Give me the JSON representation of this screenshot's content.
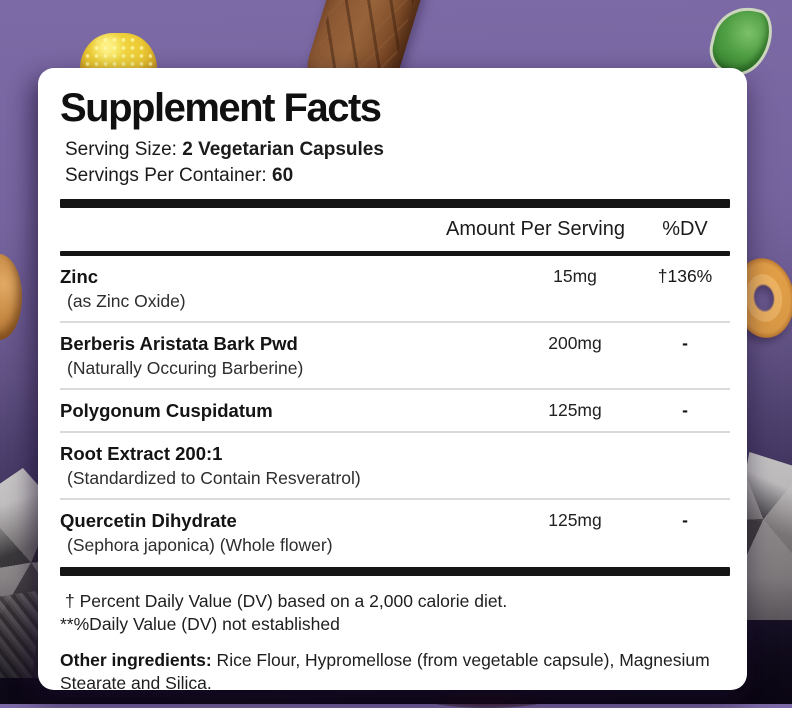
{
  "background": {
    "base_top_color": "#7c6aa6",
    "base_bottom_color": "#171021",
    "decor_items": [
      "yellow-gummy",
      "chocolate-stick",
      "green-gummy",
      "orange-gummy",
      "peach-ring-gummy",
      "foil-wrapper-left",
      "foil-wrapper-right",
      "red-blob"
    ]
  },
  "panel": {
    "title": "Supplement Facts",
    "serving_size_label": "Serving Size: ",
    "serving_size_value": "2 Vegetarian Capsules",
    "servings_per_container_label": "Servings Per Container: ",
    "servings_per_container_value": "60",
    "columns": {
      "amount_header": "Amount Per Serving",
      "dv_header": "%DV"
    },
    "rows": [
      {
        "name": "Zinc",
        "sub": "(as Zinc Oxide)",
        "amount": "15mg",
        "dv": "†136%"
      },
      {
        "name": "Berberis Aristata Bark Pwd",
        "sub": "(Naturally Occuring Barberine)",
        "amount": "200mg",
        "dv": "-"
      },
      {
        "name": "Polygonum Cuspidatum",
        "sub": "",
        "amount": "125mg",
        "dv": "-"
      },
      {
        "name": "Root Extract 200:1",
        "sub": "(Standardized to Contain Resveratrol)",
        "amount": "",
        "dv": ""
      },
      {
        "name": "Quercetin Dihydrate",
        "sub": "(Sephora japonica) (Whole flower)",
        "amount": "125mg",
        "dv": "-"
      }
    ],
    "footnotes": [
      "† Percent Daily Value (DV) based on a 2,000 calorie diet.",
      "**%Daily Value (DV) not established"
    ],
    "other_ingredients_label": "Other ingredients:",
    "other_ingredients_text": " Rice Flour, Hypromellose (from vegetable capsule), Magnesium Stearate and Silica."
  }
}
